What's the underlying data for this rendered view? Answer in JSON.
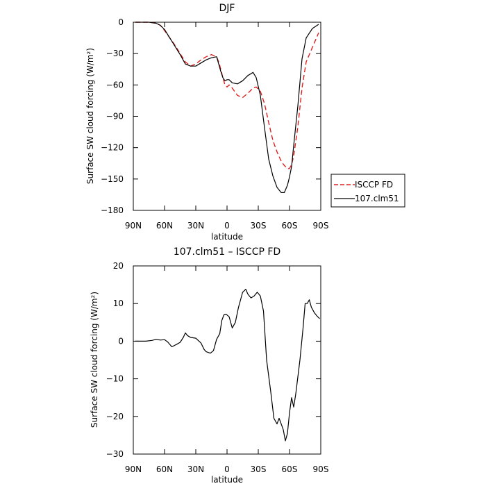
{
  "chart_data": [
    {
      "type": "line",
      "title": "DJF",
      "xlabel": "latitude",
      "ylabel": "Surface SW cloud forcing (W/m²)",
      "xlim": [
        90,
        -90
      ],
      "ylim": [
        -180,
        0
      ],
      "x_ticks": [
        90,
        60,
        30,
        0,
        -30,
        -60,
        -90
      ],
      "x_tick_labels": [
        "90N",
        "60N",
        "30N",
        "0",
        "30S",
        "60S",
        "90S"
      ],
      "y_ticks": [
        0,
        -30,
        -60,
        -90,
        -120,
        -150,
        -180
      ],
      "y_tick_labels": [
        "0",
        "−30",
        "−60",
        "−90",
        "−120",
        "−150",
        "−180"
      ],
      "legend": "outside-right",
      "series": [
        {
          "name": "ISCCP FD",
          "color": "#e02020",
          "dash": "dashed",
          "x": [
            88,
            75,
            68,
            64,
            60,
            55,
            50,
            45,
            40,
            35,
            30,
            25,
            20,
            15,
            10,
            8,
            6,
            4,
            2,
            0,
            -2,
            -5,
            -10,
            -15,
            -20,
            -25,
            -28,
            -32,
            -36,
            -40,
            -44,
            -48,
            -52,
            -55,
            -58,
            -60,
            -62,
            -64,
            -68,
            -72,
            -76,
            -82,
            -88
          ],
          "y": [
            0,
            0,
            -1,
            -3,
            -8,
            -15,
            -22,
            -30,
            -38,
            -42,
            -40,
            -36,
            -33,
            -31,
            -33,
            -38,
            -45,
            -53,
            -60,
            -62,
            -60,
            -63,
            -70,
            -72,
            -68,
            -63,
            -62,
            -66,
            -78,
            -96,
            -113,
            -124,
            -133,
            -137,
            -140,
            -140,
            -136,
            -128,
            -100,
            -63,
            -38,
            -24,
            -10
          ]
        },
        {
          "name": "107.clm51",
          "color": "#000000",
          "dash": "solid",
          "x": [
            88,
            75,
            68,
            64,
            60,
            55,
            50,
            45,
            40,
            35,
            30,
            25,
            20,
            15,
            10,
            8,
            6,
            4,
            2,
            0,
            -2,
            -5,
            -10,
            -15,
            -20,
            -25,
            -28,
            -32,
            -36,
            -40,
            -44,
            -48,
            -52,
            -55,
            -58,
            -60,
            -62,
            -64,
            -68,
            -72,
            -76,
            -82,
            -88
          ],
          "y": [
            0,
            0,
            -1,
            -3,
            -7,
            -15,
            -23,
            -31,
            -40,
            -42,
            -42,
            -39,
            -36,
            -34,
            -33,
            -40,
            -47,
            -53,
            -56,
            -55,
            -55,
            -58,
            -59,
            -56,
            -51,
            -48,
            -53,
            -70,
            -101,
            -131,
            -147,
            -158,
            -163,
            -163,
            -156,
            -148,
            -138,
            -118,
            -80,
            -35,
            -15,
            -6,
            -2
          ]
        }
      ]
    },
    {
      "type": "line",
      "title": "107.clm51 – ISCCP FD",
      "xlabel": "latitude",
      "ylabel": "Surface SW cloud forcing (W/m²)",
      "xlim": [
        90,
        -90
      ],
      "ylim": [
        -30,
        20
      ],
      "x_ticks": [
        90,
        60,
        30,
        0,
        -30,
        -60,
        -90
      ],
      "x_tick_labels": [
        "90N",
        "60N",
        "30N",
        "0",
        "30S",
        "60S",
        "90S"
      ],
      "y_ticks": [
        20,
        10,
        0,
        -10,
        -20,
        -30
      ],
      "y_tick_labels": [
        "20",
        "10",
        "0",
        "−10",
        "−20",
        "−30"
      ],
      "series": [
        {
          "color": "#000000",
          "dash": "solid",
          "x": [
            88,
            78,
            72,
            68,
            64,
            60,
            57,
            53,
            48,
            45,
            42,
            40,
            38,
            35,
            30,
            25,
            22,
            20,
            16,
            13,
            10,
            7,
            5,
            3,
            1,
            -2,
            -5,
            -8,
            -11,
            -15,
            -18,
            -20,
            -23,
            -26,
            -29,
            -32,
            -35,
            -38,
            -42,
            -45,
            -48,
            -50,
            -52,
            -54,
            -56,
            -58,
            -60,
            -62,
            -64,
            -66,
            -70,
            -73,
            -75,
            -77,
            -79,
            -81,
            -84,
            -87,
            -89
          ],
          "y": [
            0,
            0,
            0.2,
            0.5,
            0.3,
            0.4,
            -0.2,
            -1.5,
            -0.8,
            -0.3,
            1.0,
            2.2,
            1.5,
            1.0,
            0.8,
            -0.5,
            -2.2,
            -2.8,
            -3.2,
            -2.5,
            0.5,
            2.0,
            5.5,
            7.0,
            7.2,
            6.5,
            3.5,
            5.0,
            9.0,
            13.0,
            13.8,
            12.5,
            11.5,
            12.0,
            13.0,
            12.0,
            8.0,
            -5.0,
            -13.5,
            -20.5,
            -22.0,
            -20.5,
            -22.0,
            -23.5,
            -26.5,
            -24.5,
            -19.0,
            -15.0,
            -17.5,
            -14.0,
            -5.0,
            3.5,
            10.0,
            10.0,
            11.0,
            9.0,
            7.5,
            6.5,
            6.0
          ]
        }
      ]
    }
  ]
}
